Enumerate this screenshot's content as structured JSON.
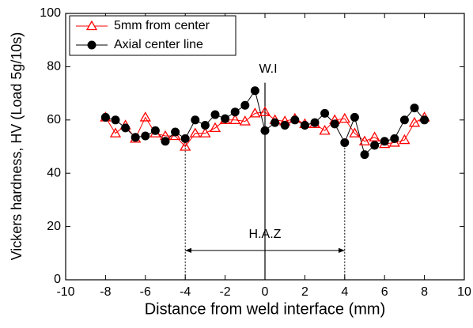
{
  "chart_data": {
    "type": "line",
    "xlabel": "Distance from weld interface (mm)",
    "ylabel": "Vickers hardness, HV (Load 5g/10s)",
    "x": [
      -8,
      -7.5,
      -7,
      -6.5,
      -6,
      -5.5,
      -5,
      -4.5,
      -4,
      -3.5,
      -3,
      -2.5,
      -2,
      -1.5,
      -1,
      -0.5,
      0,
      0.5,
      1,
      1.5,
      2,
      2.5,
      3,
      3.5,
      4,
      4.5,
      5,
      5.5,
      6,
      6.5,
      7,
      7.5,
      8
    ],
    "series": [
      {
        "name": "5mm from center",
        "color": "#ff0000",
        "marker": "triangle-open",
        "values": [
          61,
          55,
          58,
          53,
          61,
          55,
          54,
          54,
          50,
          55,
          55,
          57,
          60,
          60,
          59.5,
          62.5,
          63,
          60,
          59.5,
          60.5,
          58.5,
          58.5,
          56,
          60,
          60.5,
          55,
          52,
          53.5,
          51,
          51.5,
          52.5,
          59,
          61
        ]
      },
      {
        "name": "Axial center line",
        "color": "#000000",
        "marker": "circle-filled",
        "values": [
          61,
          60,
          57,
          53.5,
          54,
          56,
          52,
          55.5,
          53,
          60,
          58,
          62,
          60.5,
          63,
          65.5,
          71,
          56,
          59,
          58,
          60,
          58,
          59,
          62.5,
          58.5,
          51.5,
          61,
          47,
          50.5,
          52,
          53,
          60,
          64.5,
          60
        ]
      }
    ],
    "xlim": [
      -10,
      10
    ],
    "xticks": [
      -10,
      -8,
      -6,
      -4,
      -2,
      0,
      2,
      4,
      6,
      8,
      10
    ],
    "ylim": [
      0,
      100
    ],
    "yticks": [
      0,
      20,
      40,
      60,
      80,
      100
    ],
    "legend": "upper left",
    "annotations": {
      "weld_interface": {
        "text": "W.I",
        "x": 0
      },
      "haz": {
        "text": "H.A.Z",
        "x": [
          -4,
          4
        ]
      }
    }
  }
}
